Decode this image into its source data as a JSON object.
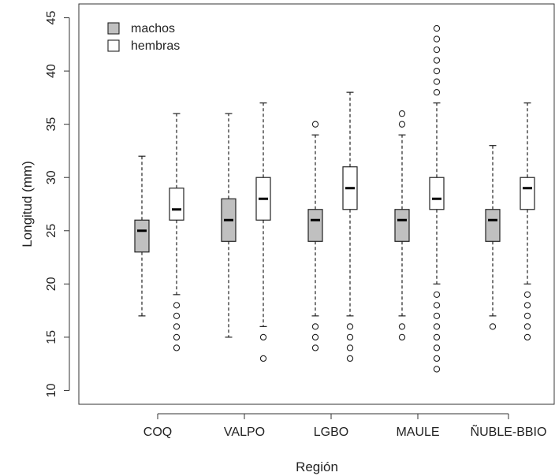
{
  "chart_data": {
    "type": "boxplot",
    "title": "",
    "xlabel": "Región",
    "ylabel": "Longitud (mm)",
    "ylim": [
      8.7,
      46.3
    ],
    "yticks": [
      10,
      15,
      20,
      25,
      30,
      35,
      40,
      45
    ],
    "categories": [
      "COQ",
      "VALPO",
      "LGBO",
      "MAULE",
      "ÑUBLE-BBIO"
    ],
    "legend": {
      "position": "top-left",
      "entries": [
        {
          "label": "machos",
          "fill": "#c0c0c0"
        },
        {
          "label": "hembras",
          "fill": "#ffffff"
        }
      ]
    },
    "series": [
      {
        "name": "machos",
        "fill": "#c0c0c0",
        "boxes": [
          {
            "category": "COQ",
            "whisker_low": 17,
            "q1": 23,
            "median": 25,
            "q3": 26,
            "whisker_high": 32,
            "outliers": []
          },
          {
            "category": "VALPO",
            "whisker_low": 15,
            "q1": 24,
            "median": 26,
            "q3": 28,
            "whisker_high": 36,
            "outliers": []
          },
          {
            "category": "LGBO",
            "whisker_low": 17,
            "q1": 24,
            "median": 26,
            "q3": 27,
            "whisker_high": 34,
            "outliers": [
              14,
              15,
              16,
              35
            ]
          },
          {
            "category": "MAULE",
            "whisker_low": 17,
            "q1": 24,
            "median": 26,
            "q3": 27,
            "whisker_high": 34,
            "outliers": [
              15,
              16,
              35,
              36
            ]
          },
          {
            "category": "ÑUBLE-BBIO",
            "whisker_low": 17,
            "q1": 24,
            "median": 26,
            "q3": 27,
            "whisker_high": 33,
            "outliers": [
              16
            ]
          }
        ]
      },
      {
        "name": "hembras",
        "fill": "#ffffff",
        "boxes": [
          {
            "category": "COQ",
            "whisker_low": 19,
            "q1": 26,
            "median": 27,
            "q3": 29,
            "whisker_high": 36,
            "outliers": [
              14,
              15,
              16,
              17,
              18
            ]
          },
          {
            "category": "VALPO",
            "whisker_low": 16,
            "q1": 26,
            "median": 28,
            "q3": 30,
            "whisker_high": 37,
            "outliers": [
              13,
              15
            ]
          },
          {
            "category": "LGBO",
            "whisker_low": 17,
            "q1": 27,
            "median": 29,
            "q3": 31,
            "whisker_high": 38,
            "outliers": [
              13,
              14,
              15,
              16
            ]
          },
          {
            "category": "MAULE",
            "whisker_low": 20,
            "q1": 27,
            "median": 28,
            "q3": 30,
            "whisker_high": 37,
            "outliers": [
              12,
              13,
              14,
              15,
              16,
              17,
              18,
              19,
              38,
              39,
              40,
              41,
              42,
              43,
              44
            ]
          },
          {
            "category": "ÑUBLE-BBIO",
            "whisker_low": 20,
            "q1": 27,
            "median": 29,
            "q3": 30,
            "whisker_high": 37,
            "outliers": [
              15,
              16,
              17,
              18,
              19
            ]
          }
        ]
      }
    ]
  }
}
